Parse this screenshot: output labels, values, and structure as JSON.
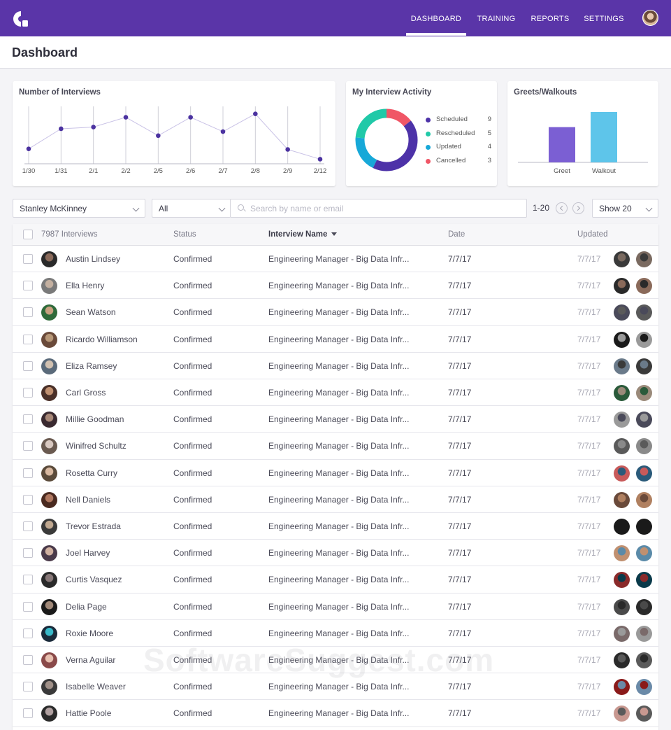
{
  "nav": {
    "items": [
      "DASHBOARD",
      "TRAINING",
      "REPORTS",
      "SETTINGS"
    ],
    "active": "DASHBOARD",
    "accent": "#5a35a8"
  },
  "page": {
    "title": "Dashboard"
  },
  "cards": {
    "interviews": {
      "title": "Number of Interviews"
    },
    "activity": {
      "title": "My Interview Activity"
    },
    "greets": {
      "title": "Greets/Walkouts"
    }
  },
  "chart_data": [
    {
      "type": "line",
      "title": "Number of Interviews",
      "x": [
        "1/30",
        "1/31",
        "2/1",
        "2/2",
        "2/5",
        "2/6",
        "2/7",
        "2/8",
        "2/9",
        "2/12"
      ],
      "values": [
        26,
        61,
        64,
        81,
        49,
        81,
        56,
        87,
        25,
        8
      ],
      "color": "#4b32a0",
      "grid": true
    },
    {
      "type": "pie",
      "title": "My Interview Activity",
      "donut": true,
      "labels": [
        "Scheduled",
        "Rescheduled",
        "Updated",
        "Cancelled"
      ],
      "values": [
        9,
        5,
        4,
        3
      ],
      "colors": [
        "#4d32a8",
        "#20c9a8",
        "#17a8d8",
        "#f05666"
      ]
    },
    {
      "type": "bar",
      "title": "Greets/Walkouts",
      "categories": [
        "Greet",
        "Walkout"
      ],
      "values": [
        7,
        10
      ],
      "colors": [
        "#7b5fd3",
        "#5ec5ea"
      ]
    }
  ],
  "filters": {
    "user": "Stanley McKinney",
    "status": "All",
    "search_placeholder": "Search by name or email",
    "range": "1-20",
    "show": "Show 20"
  },
  "table": {
    "count_label": "7987 Interviews",
    "headers": {
      "status": "Status",
      "interview": "Interview Name",
      "date": "Date",
      "updated": "Updated"
    },
    "rows": [
      {
        "name": "Austin Lindsey",
        "status": "Confirmed",
        "interview": "Engineering Manager - Big Data Infr...",
        "date": "7/7/17",
        "updated": "7/7/17"
      },
      {
        "name": "Ella Henry",
        "status": "Confirmed",
        "interview": "Engineering Manager - Big Data Infr...",
        "date": "7/7/17",
        "updated": "7/7/17"
      },
      {
        "name": "Sean Watson",
        "status": "Confirmed",
        "interview": "Engineering Manager - Big Data Infr...",
        "date": "7/7/17",
        "updated": "7/7/17"
      },
      {
        "name": "Ricardo Williamson",
        "status": "Confirmed",
        "interview": "Engineering Manager - Big Data Infr...",
        "date": "7/7/17",
        "updated": "7/7/17"
      },
      {
        "name": "Eliza Ramsey",
        "status": "Confirmed",
        "interview": "Engineering Manager - Big Data Infr...",
        "date": "7/7/17",
        "updated": "7/7/17"
      },
      {
        "name": "Carl Gross",
        "status": "Confirmed",
        "interview": "Engineering Manager - Big Data Infr...",
        "date": "7/7/17",
        "updated": "7/7/17"
      },
      {
        "name": "Millie Goodman",
        "status": "Confirmed",
        "interview": "Engineering Manager - Big Data Infr...",
        "date": "7/7/17",
        "updated": "7/7/17"
      },
      {
        "name": "Winifred Schultz",
        "status": "Confirmed",
        "interview": "Engineering Manager - Big Data Infr...",
        "date": "7/7/17",
        "updated": "7/7/17"
      },
      {
        "name": "Rosetta Curry",
        "status": "Confirmed",
        "interview": "Engineering Manager - Big Data Infr...",
        "date": "7/7/17",
        "updated": "7/7/17"
      },
      {
        "name": "Nell Daniels",
        "status": "Confirmed",
        "interview": "Engineering Manager - Big Data Infr...",
        "date": "7/7/17",
        "updated": "7/7/17"
      },
      {
        "name": "Trevor Estrada",
        "status": "Confirmed",
        "interview": "Engineering Manager - Big Data Infr...",
        "date": "7/7/17",
        "updated": "7/7/17"
      },
      {
        "name": "Joel Harvey",
        "status": "Confirmed",
        "interview": "Engineering Manager - Big Data Infr...",
        "date": "7/7/17",
        "updated": "7/7/17"
      },
      {
        "name": "Curtis Vasquez",
        "status": "Confirmed",
        "interview": "Engineering Manager - Big Data Infr...",
        "date": "7/7/17",
        "updated": "7/7/17"
      },
      {
        "name": "Delia Page",
        "status": "Confirmed",
        "interview": "Engineering Manager - Big Data Infr...",
        "date": "7/7/17",
        "updated": "7/7/17"
      },
      {
        "name": "Roxie Moore",
        "status": "Confirmed",
        "interview": "Engineering Manager - Big Data Infr...",
        "date": "7/7/17",
        "updated": "7/7/17"
      },
      {
        "name": "Verna Aguilar",
        "status": "Confirmed",
        "interview": "Engineering Manager - Big Data Infr...",
        "date": "7/7/17",
        "updated": "7/7/17"
      },
      {
        "name": "Isabelle Weaver",
        "status": "Confirmed",
        "interview": "Engineering Manager - Big Data Infr...",
        "date": "7/7/17",
        "updated": "7/7/17"
      },
      {
        "name": "Hattie Poole",
        "status": "Confirmed",
        "interview": "Engineering Manager - Big Data Infr...",
        "date": "7/7/17",
        "updated": "7/7/17"
      }
    ]
  },
  "watermark": "SoftwareSuggest.com"
}
